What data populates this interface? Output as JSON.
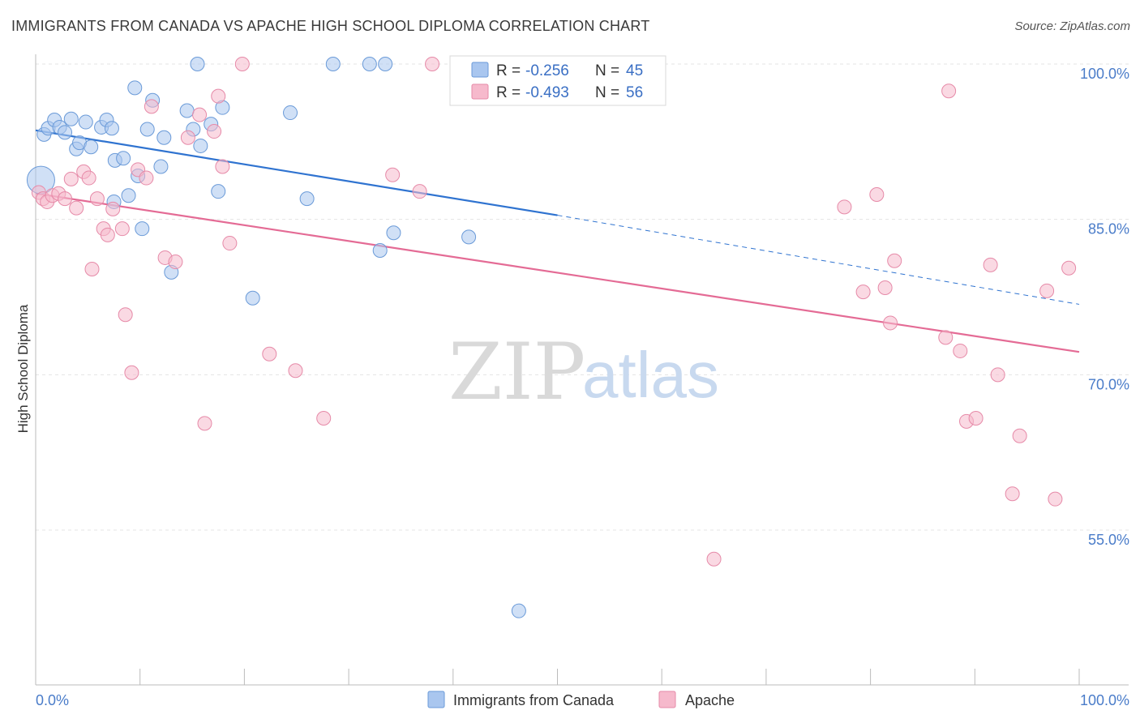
{
  "title": "IMMIGRANTS FROM CANADA VS APACHE HIGH SCHOOL DIPLOMA CORRELATION CHART",
  "source": "Source: ZipAtlas.com",
  "watermark": {
    "zip": "ZIP",
    "atlas": "atlas"
  },
  "colors": {
    "canada_fill": "#a9c6ef",
    "canada_stroke": "#6a9ad8",
    "canada_line": "#2f73d0",
    "apache_fill": "#f6b9cc",
    "apache_stroke": "#e68aa8",
    "apache_line": "#e46b95",
    "grid": "#e4e4e4",
    "axis_label": "#4a7cc9"
  },
  "legend": {
    "r_label": "R =",
    "n_label": "N =",
    "canada": {
      "r": "-0.256",
      "n": "45"
    },
    "apache": {
      "r": "-0.493",
      "n": "56"
    }
  },
  "chart_data": {
    "type": "scatter",
    "title": "IMMIGRANTS FROM CANADA VS APACHE HIGH SCHOOL DIPLOMA CORRELATION CHART",
    "xlabel": "",
    "ylabel": "High School Diploma",
    "xlim": [
      0,
      100
    ],
    "ylim": [
      43,
      102
    ],
    "x_tick_labels": [
      "0.0%",
      "100.0%"
    ],
    "y_ticks": [
      55,
      70,
      85,
      100
    ],
    "y_tick_labels": [
      "55.0%",
      "70.0%",
      "85.0%",
      "100.0%"
    ],
    "grid": true,
    "legend_position": "top-center",
    "series": [
      {
        "name": "Immigrants from Canada",
        "points": [
          [
            0.5,
            88.8
          ],
          [
            0.8,
            93.2
          ],
          [
            1.2,
            93.8
          ],
          [
            1.8,
            94.6
          ],
          [
            2.3,
            93.9
          ],
          [
            2.8,
            93.4
          ],
          [
            3.4,
            94.7
          ],
          [
            3.9,
            91.8
          ],
          [
            4.2,
            92.4
          ],
          [
            4.8,
            94.4
          ],
          [
            5.3,
            92.0
          ],
          [
            6.3,
            93.9
          ],
          [
            6.8,
            94.6
          ],
          [
            7.3,
            93.8
          ],
          [
            7.5,
            86.7
          ],
          [
            7.6,
            90.7
          ],
          [
            8.4,
            90.9
          ],
          [
            8.9,
            87.3
          ],
          [
            9.5,
            97.7
          ],
          [
            9.8,
            89.2
          ],
          [
            10.2,
            84.1
          ],
          [
            10.7,
            93.7
          ],
          [
            11.2,
            96.5
          ],
          [
            12.0,
            90.1
          ],
          [
            12.3,
            92.9
          ],
          [
            13.0,
            79.9
          ],
          [
            14.5,
            95.5
          ],
          [
            15.1,
            93.7
          ],
          [
            15.5,
            100.0
          ],
          [
            15.8,
            92.1
          ],
          [
            16.8,
            94.2
          ],
          [
            17.5,
            87.7
          ],
          [
            17.9,
            95.8
          ],
          [
            20.8,
            77.4
          ],
          [
            24.4,
            95.3
          ],
          [
            26.0,
            87.0
          ],
          [
            28.5,
            100.0
          ],
          [
            32.0,
            100.0
          ],
          [
            33.5,
            100.0
          ],
          [
            33.0,
            82.0
          ],
          [
            34.3,
            83.7
          ],
          [
            40.5,
            100.0
          ],
          [
            41.5,
            83.3
          ],
          [
            46.3,
            47.2
          ],
          [
            50.0,
            100.0
          ]
        ]
      },
      {
        "name": "Apache",
        "points": [
          [
            0.3,
            87.6
          ],
          [
            0.7,
            87.0
          ],
          [
            1.1,
            86.7
          ],
          [
            1.6,
            87.3
          ],
          [
            2.2,
            87.5
          ],
          [
            2.8,
            87.0
          ],
          [
            3.4,
            88.9
          ],
          [
            3.9,
            86.1
          ],
          [
            4.6,
            89.6
          ],
          [
            5.1,
            89.0
          ],
          [
            5.4,
            80.2
          ],
          [
            5.9,
            87.0
          ],
          [
            6.5,
            84.1
          ],
          [
            6.9,
            83.5
          ],
          [
            7.4,
            86.0
          ],
          [
            8.3,
            84.1
          ],
          [
            8.6,
            75.8
          ],
          [
            9.2,
            70.2
          ],
          [
            9.8,
            89.8
          ],
          [
            10.6,
            89.0
          ],
          [
            11.1,
            95.9
          ],
          [
            12.4,
            81.3
          ],
          [
            13.4,
            80.9
          ],
          [
            14.6,
            92.9
          ],
          [
            15.7,
            95.1
          ],
          [
            16.2,
            65.3
          ],
          [
            17.1,
            93.5
          ],
          [
            17.5,
            96.9
          ],
          [
            17.9,
            90.1
          ],
          [
            18.6,
            82.7
          ],
          [
            19.8,
            100.0
          ],
          [
            22.4,
            72.0
          ],
          [
            24.9,
            70.4
          ],
          [
            27.6,
            65.8
          ],
          [
            34.2,
            89.3
          ],
          [
            36.8,
            87.7
          ],
          [
            38.0,
            100.0
          ],
          [
            65.0,
            52.2
          ],
          [
            77.5,
            86.2
          ],
          [
            79.3,
            78.0
          ],
          [
            80.6,
            87.4
          ],
          [
            81.4,
            78.4
          ],
          [
            81.9,
            75.0
          ],
          [
            82.3,
            81.0
          ],
          [
            87.2,
            73.6
          ],
          [
            87.5,
            97.4
          ],
          [
            88.6,
            72.3
          ],
          [
            89.2,
            65.5
          ],
          [
            90.1,
            65.8
          ],
          [
            91.5,
            80.6
          ],
          [
            92.2,
            70.0
          ],
          [
            93.6,
            58.5
          ],
          [
            94.3,
            64.1
          ],
          [
            96.9,
            78.1
          ],
          [
            97.7,
            58.0
          ],
          [
            99.0,
            80.3
          ]
        ]
      }
    ],
    "trendlines": [
      {
        "series": "Immigrants from Canada",
        "x0": 0,
        "y0": 93.6,
        "x1": 50,
        "y1": 85.4,
        "dashed_to_x": 100,
        "dashed_to_y": 76.8
      },
      {
        "series": "Apache",
        "x0": 0,
        "y0": 87.5,
        "x1": 100,
        "y1": 72.2
      }
    ]
  }
}
